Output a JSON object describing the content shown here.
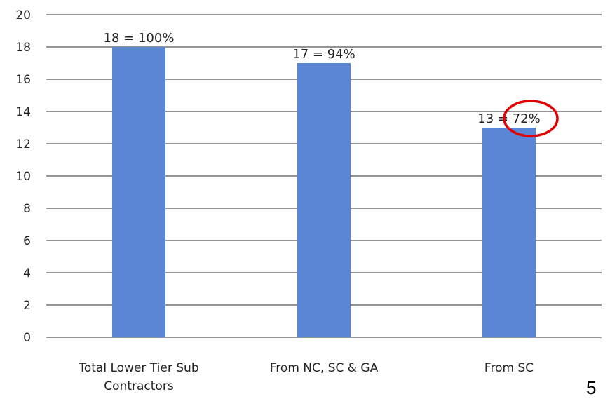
{
  "chart_data": {
    "type": "bar",
    "title": "",
    "xlabel": "",
    "ylabel": "",
    "ylim": [
      0,
      20
    ],
    "yticks": [
      0,
      2,
      4,
      6,
      8,
      10,
      12,
      14,
      16,
      18,
      20
    ],
    "grid": true,
    "legend": "none",
    "bar_color": "#5b86d6",
    "categories": [
      [
        "Total Lower Tier Sub",
        "Contractors"
      ],
      [
        "From NC, SC & GA"
      ],
      [
        "From SC"
      ]
    ],
    "values": [
      18,
      17,
      13
    ],
    "data_labels": [
      "18 = 100%",
      "17 = 94%",
      "13 = 72%"
    ],
    "annotations": [
      {
        "type": "circle",
        "color": "#e00000",
        "target": "72%"
      }
    ]
  },
  "page_number": "5"
}
